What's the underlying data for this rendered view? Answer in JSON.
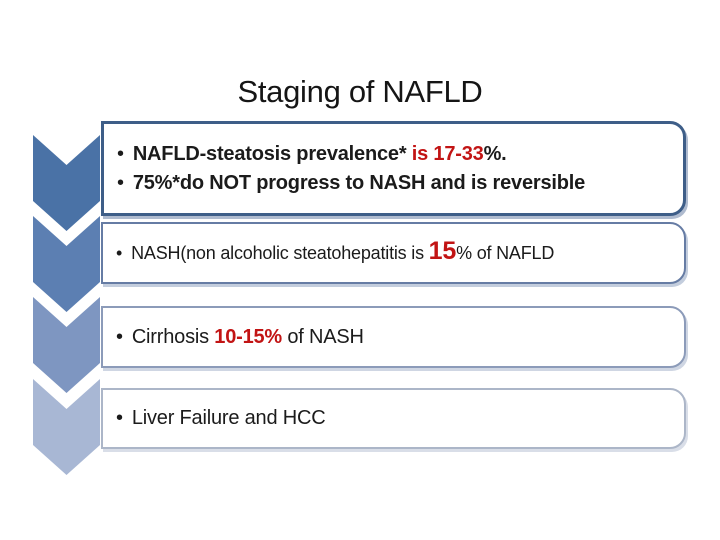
{
  "title": "Staging of NAFLD",
  "bullet": "•",
  "colors": {
    "red_accent": "#C21414",
    "text_black": "#1b1b1b",
    "background": "#ffffff"
  },
  "stages": [
    {
      "name": "steatosis",
      "chevron_fill": "#4A72A6",
      "box_border": "#3E5E88",
      "lines": [
        [
          {
            "text": "NAFLD-steatosis prevalence* ",
            "red": false,
            "bold": true
          },
          {
            "text": "is 17-33",
            "red": true,
            "bold": true
          },
          {
            "text": "%.",
            "red": false,
            "bold": true
          }
        ],
        [
          {
            "text": "75%*do NOT progress to NASH and is reversible",
            "red": false,
            "bold": true
          }
        ]
      ]
    },
    {
      "name": "nash",
      "chevron_fill": "#5C7FB2",
      "box_border": "#667CA4",
      "lines": [
        [
          {
            "text": "NASH(non alcoholic steatohepatitis is ",
            "red": false,
            "bold": false
          },
          {
            "text": "15",
            "red": true,
            "bold": true,
            "big": true
          },
          {
            "text": "% of NAFLD",
            "red": false,
            "bold": false
          }
        ]
      ]
    },
    {
      "name": "cirrhosis",
      "chevron_fill": "#7E96C1",
      "box_border": "#8C9BB9",
      "lines": [
        [
          {
            "text": "Cirrhosis ",
            "red": false,
            "bold": false
          },
          {
            "text": "10-15%",
            "red": true,
            "bold": true
          },
          {
            "text": " of NASH",
            "red": false,
            "bold": false
          }
        ]
      ]
    },
    {
      "name": "liver-failure",
      "chevron_fill": "#A8B7D4",
      "box_border": "#ACB6C8",
      "lines": [
        [
          {
            "text": "Liver Failure and HCC",
            "red": false,
            "bold": false
          }
        ]
      ]
    }
  ]
}
